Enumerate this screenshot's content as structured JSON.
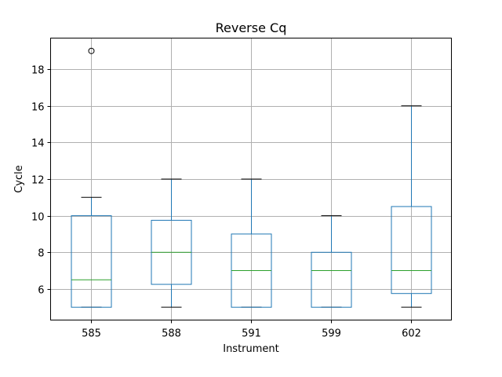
{
  "chart_data": {
    "type": "box",
    "title": "Reverse Cq",
    "xlabel": "Instrument",
    "ylabel": "Cycle",
    "categories": [
      "585",
      "588",
      "591",
      "599",
      "602"
    ],
    "boxes": [
      {
        "category": "585",
        "whisker_low": 5,
        "q1": 5,
        "median": 6.5,
        "q3": 10,
        "whisker_high": 11,
        "fliers": [
          19
        ]
      },
      {
        "category": "588",
        "whisker_low": 5,
        "q1": 6.25,
        "median": 8,
        "q3": 9.75,
        "whisker_high": 12,
        "fliers": []
      },
      {
        "category": "591",
        "whisker_low": 5,
        "q1": 5,
        "median": 7,
        "q3": 9,
        "whisker_high": 12,
        "fliers": []
      },
      {
        "category": "599",
        "whisker_low": 5,
        "q1": 5,
        "median": 7,
        "q3": 8,
        "whisker_high": 10,
        "fliers": []
      },
      {
        "category": "602",
        "whisker_low": 5,
        "q1": 5.75,
        "median": 7,
        "q3": 10.5,
        "whisker_high": 16,
        "fliers": []
      }
    ],
    "yticks": [
      6,
      8,
      10,
      12,
      14,
      16,
      18
    ],
    "ylim": [
      4.3,
      19.7
    ],
    "grid": true,
    "colors": {
      "box": "#1f77b4",
      "median": "#2ca02c",
      "whisker_cap": "#000000",
      "grid": "#b0b0b0"
    }
  }
}
